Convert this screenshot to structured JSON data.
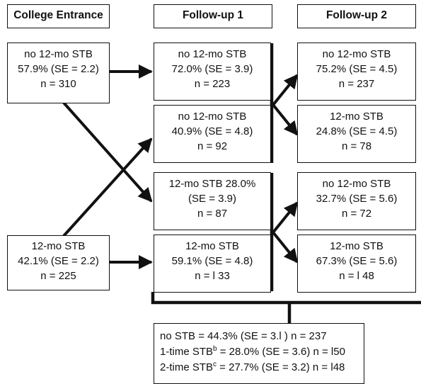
{
  "headers": {
    "entrance": "College Entrance",
    "followup1": "Follow-up 1",
    "followup2": "Follow-up 2"
  },
  "entrance": {
    "no_stb": {
      "label": "no 12-mo STB",
      "stat": "57.9% (SE = 2.2)",
      "n": "n = 310"
    },
    "stb": {
      "label": "12-mo STB",
      "stat": "42.1% (SE = 2.2)",
      "n": "n = 225"
    }
  },
  "followup1": {
    "no_from_no": {
      "label": "no 12-mo STB",
      "stat": "72.0% (SE = 3.9)",
      "n": "n = 223"
    },
    "no_from_stb": {
      "label": "no 12-mo STB",
      "stat": "40.9% (SE = 4.8)",
      "n": "n = 92"
    },
    "stb_from_no": {
      "label": "12-mo STB 28.0%",
      "stat": "(SE  = 3.9)",
      "n": "n  = 87"
    },
    "stb_from_stb": {
      "label": "12-mo STB",
      "stat": "59.1% (SE = 4.8)",
      "n": "n = l 33"
    }
  },
  "followup2": {
    "no_upper": {
      "label": "no 12-mo STB",
      "stat": "75.2% (SE = 4.5)",
      "n": "n = 237"
    },
    "stb_upper": {
      "label": "12-mo STB",
      "stat": "24.8% (SE = 4.5)",
      "n": "n = 78"
    },
    "no_lower": {
      "label": "no 12-mo STB",
      "stat": "32.7% (SE  = 5.6)",
      "n": "n = 72"
    },
    "stb_lower": {
      "label": "12-mo STB",
      "stat": "67.3% (SE = 5.6)",
      "n": "n = l 48"
    }
  },
  "summary": {
    "no_stb": "no STB  = 44.3% (SE = 3.l ) n = 237",
    "one_time_prefix": "1-time STB",
    "one_time_sup": "b",
    "one_time_rest": " = 28.0% (SE = 3.6) n = l50",
    "two_time_prefix": "2-time STB",
    "two_time_sup": "c",
    "two_time_rest": " = 27.7% (SE = 3.2) n = l48"
  }
}
